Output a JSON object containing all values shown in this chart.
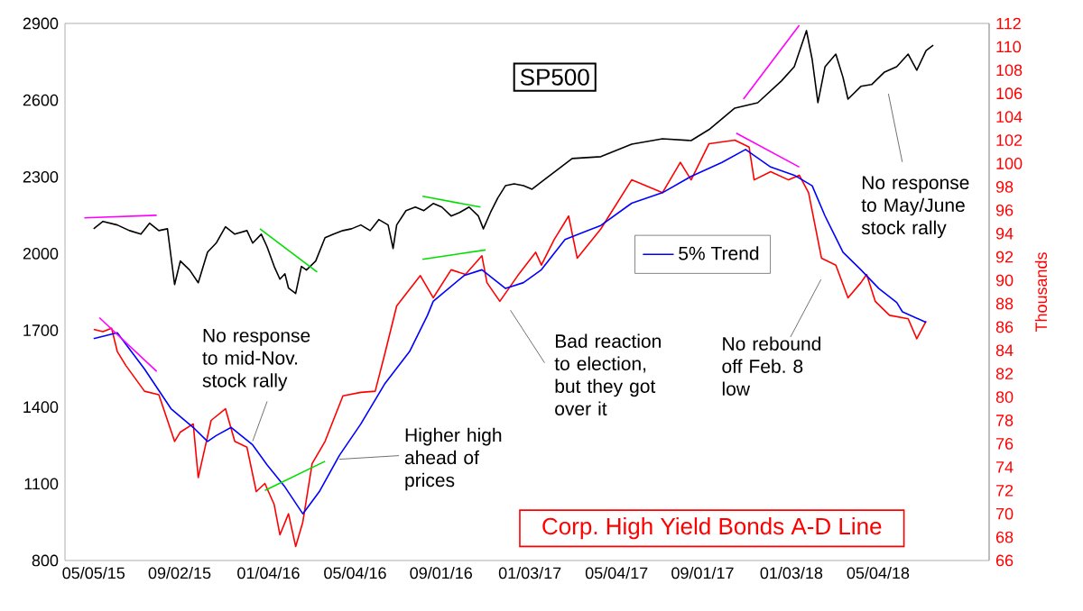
{
  "chart_data": {
    "type": "line",
    "xlim": [
      "2015-03-26",
      "2018-10-06"
    ],
    "xticks": [
      {
        "value": "2015-05-05",
        "label": "05/05/15"
      },
      {
        "value": "2015-09-02",
        "label": "09/02/15"
      },
      {
        "value": "2016-01-04",
        "label": "01/04/16"
      },
      {
        "value": "2016-05-04",
        "label": "05/04/16"
      },
      {
        "value": "2016-09-01",
        "label": "09/01/16"
      },
      {
        "value": "2017-01-03",
        "label": "01/03/17"
      },
      {
        "value": "2017-05-04",
        "label": "05/04/17"
      },
      {
        "value": "2017-09-01",
        "label": "09/01/17"
      },
      {
        "value": "2018-01-03",
        "label": "01/03/18"
      },
      {
        "value": "2018-05-04",
        "label": "05/04/18"
      }
    ],
    "ylim": [
      800,
      2900
    ],
    "yticks": [
      800,
      1100,
      1400,
      1700,
      2000,
      2300,
      2600,
      2900
    ],
    "y2lim": [
      66,
      112
    ],
    "y2ticks": [
      66,
      68,
      70,
      72,
      74,
      76,
      78,
      80,
      82,
      84,
      86,
      88,
      90,
      92,
      94,
      96,
      98,
      100,
      102,
      104,
      106,
      108,
      110,
      112
    ],
    "y2label": "Thousands",
    "legend": "center right",
    "marker": "none",
    "series": [
      {
        "name": "SP500",
        "color": "#000000",
        "x": [
          "2015-05-05",
          "2015-05-18",
          "2015-06-07",
          "2015-06-24",
          "2015-07-10",
          "2015-07-22",
          "2015-08-04",
          "2015-08-16",
          "2015-08-26",
          "2015-09-03",
          "2015-09-16",
          "2015-09-28",
          "2015-10-11",
          "2015-10-23",
          "2015-11-05",
          "2015-11-18",
          "2015-12-05",
          "2015-12-13",
          "2015-12-25",
          "2016-01-02",
          "2016-01-12",
          "2016-01-20",
          "2016-01-27",
          "2016-02-01",
          "2016-02-11",
          "2016-02-19",
          "2016-02-26",
          "2016-03-10",
          "2016-03-23",
          "2016-04-04",
          "2016-04-17",
          "2016-04-29",
          "2016-05-12",
          "2016-05-25",
          "2016-06-06",
          "2016-06-19",
          "2016-06-26",
          "2016-07-01",
          "2016-07-14",
          "2016-07-27",
          "2016-08-08",
          "2016-08-21",
          "2016-09-02",
          "2016-09-15",
          "2016-09-27",
          "2016-10-10",
          "2016-10-23",
          "2016-10-30",
          "2016-11-09",
          "2016-11-19",
          "2016-11-30",
          "2016-12-12",
          "2016-12-25",
          "2017-01-06",
          "2017-01-19",
          "2017-03-03",
          "2017-04-12",
          "2017-05-25",
          "2017-07-07",
          "2017-08-16",
          "2017-09-10",
          "2017-10-16",
          "2017-11-17",
          "2017-12-20",
          "2018-01-07",
          "2018-01-24",
          "2018-02-01",
          "2018-02-09",
          "2018-02-19",
          "2018-03-06",
          "2018-03-16",
          "2018-03-23",
          "2018-04-10",
          "2018-04-25",
          "2018-05-13",
          "2018-05-30",
          "2018-06-15",
          "2018-06-27",
          "2018-07-10",
          "2018-07-20"
        ],
        "values": [
          2097,
          2126,
          2112,
          2090,
          2076,
          2119,
          2090,
          2097,
          1879,
          1971,
          1936,
          1886,
          2006,
          2041,
          2105,
          2076,
          2090,
          2041,
          2076,
          2027,
          1950,
          1900,
          1921,
          1865,
          1844,
          1950,
          1936,
          1971,
          2062,
          2076,
          2090,
          2097,
          2112,
          2090,
          2133,
          2112,
          2020,
          2112,
          2168,
          2182,
          2168,
          2196,
          2182,
          2147,
          2161,
          2182,
          2147,
          2097,
          2161,
          2217,
          2266,
          2273,
          2266,
          2252,
          2280,
          2372,
          2379,
          2428,
          2449,
          2442,
          2485,
          2569,
          2590,
          2675,
          2731,
          2872,
          2759,
          2590,
          2731,
          2780,
          2689,
          2604,
          2654,
          2661,
          2710,
          2731,
          2780,
          2717,
          2794,
          2815
        ]
      },
      {
        "name": "Corp. High Yield Bonds A-D Line",
        "color": "#ff0000",
        "axis": "y2",
        "x": [
          "2015-05-05",
          "2015-05-18",
          "2015-05-30",
          "2015-06-07",
          "2015-06-19",
          "2015-07-02",
          "2015-07-15",
          "2015-08-04",
          "2015-08-26",
          "2015-09-03",
          "2015-09-21",
          "2015-09-28",
          "2015-10-16",
          "2015-11-05",
          "2015-11-18",
          "2015-12-05",
          "2015-12-18",
          "2015-12-30",
          "2016-01-12",
          "2016-01-20",
          "2016-02-01",
          "2016-02-11",
          "2016-02-21",
          "2016-03-05",
          "2016-03-23",
          "2016-04-17",
          "2016-05-12",
          "2016-06-01",
          "2016-06-14",
          "2016-07-01",
          "2016-08-03",
          "2016-08-21",
          "2016-09-15",
          "2016-10-05",
          "2016-10-28",
          "2016-11-04",
          "2016-11-22",
          "2016-12-17",
          "2017-01-11",
          "2017-01-19",
          "2017-02-06",
          "2017-02-26",
          "2017-03-10",
          "2017-04-12",
          "2017-05-25",
          "2017-07-07",
          "2017-08-01",
          "2017-08-16",
          "2017-09-10",
          "2017-10-16",
          "2017-11-05",
          "2017-11-12",
          "2017-12-05",
          "2017-12-30",
          "2018-01-14",
          "2018-01-27",
          "2018-02-14",
          "2018-03-06",
          "2018-03-23",
          "2018-04-10",
          "2018-04-18",
          "2018-04-30",
          "2018-05-20",
          "2018-06-15",
          "2018-06-27",
          "2018-07-10"
        ],
        "values": [
          85.8,
          85.6,
          85.9,
          83.9,
          82.7,
          81.6,
          80.5,
          80.2,
          76.2,
          77.0,
          77.7,
          73.1,
          78.0,
          79.0,
          76.2,
          75.7,
          71.9,
          72.6,
          70.8,
          68.2,
          70.0,
          67.2,
          69.3,
          74.3,
          76.2,
          80.1,
          80.4,
          80.5,
          83.6,
          87.8,
          90.4,
          88.5,
          90.9,
          90.5,
          92.1,
          89.8,
          88.2,
          90.4,
          92.4,
          91.3,
          93.5,
          95.5,
          91.9,
          94.4,
          98.6,
          97.5,
          100.1,
          98.6,
          101.7,
          102.0,
          101.4,
          98.6,
          99.3,
          98.6,
          99.0,
          97.5,
          91.9,
          91.3,
          88.5,
          89.8,
          90.5,
          88.2,
          87.0,
          86.7,
          85.0,
          86.5
        ]
      },
      {
        "name": "5% Trend",
        "color": "#0000ff",
        "axis": "y2",
        "x": [
          "2015-05-05",
          "2015-06-07",
          "2015-07-15",
          "2015-08-21",
          "2015-09-21",
          "2015-10-11",
          "2015-10-23",
          "2015-11-13",
          "2015-12-13",
          "2016-01-02",
          "2016-01-27",
          "2016-02-21",
          "2016-03-15",
          "2016-04-12",
          "2016-05-12",
          "2016-06-14",
          "2016-07-19",
          "2016-08-13",
          "2016-08-21",
          "2016-10-03",
          "2016-10-28",
          "2016-11-30",
          "2016-12-25",
          "2017-01-19",
          "2017-02-21",
          "2017-04-12",
          "2017-05-25",
          "2017-07-07",
          "2017-08-16",
          "2017-09-28",
          "2017-10-31",
          "2017-12-05",
          "2018-01-07",
          "2018-02-01",
          "2018-02-19",
          "2018-03-16",
          "2018-04-10",
          "2018-05-05",
          "2018-05-30",
          "2018-06-07",
          "2018-07-10"
        ],
        "values": [
          85.0,
          85.5,
          82.4,
          79.0,
          77.4,
          76.2,
          76.7,
          77.4,
          75.9,
          74.2,
          72.3,
          70.0,
          71.9,
          75.0,
          77.7,
          81.1,
          83.9,
          87.0,
          88.2,
          90.4,
          90.9,
          89.3,
          89.8,
          90.9,
          93.5,
          94.7,
          96.6,
          97.5,
          98.9,
          100.1,
          101.2,
          99.7,
          99.0,
          98.1,
          95.5,
          92.4,
          90.9,
          89.3,
          88.1,
          87.3,
          86.4
        ]
      },
      {
        "color": "#ff00ff",
        "x": [
          "2015-04-22",
          "2015-08-01"
        ],
        "values": [
          2140,
          2150
        ]
      },
      {
        "color": "#ff00ff",
        "axis": "y2",
        "x": [
          "2015-05-13",
          "2015-08-01"
        ],
        "values": [
          86.8,
          82.2
        ]
      },
      {
        "color": "#00dd00",
        "x": [
          "2015-12-23",
          "2016-03-12"
        ],
        "values": [
          2097,
          1928
        ]
      },
      {
        "color": "#00dd00",
        "axis": "y2",
        "x": [
          "2015-12-30",
          "2016-03-23"
        ],
        "values": [
          72.0,
          74.5
        ]
      },
      {
        "color": "#00dd00",
        "x": [
          "2016-08-06",
          "2016-10-26"
        ],
        "values": [
          2224,
          2182
        ]
      },
      {
        "color": "#00dd00",
        "axis": "y2",
        "x": [
          "2016-08-06",
          "2016-11-02"
        ],
        "values": [
          91.8,
          92.6
        ]
      },
      {
        "color": "#ff00ff",
        "x": [
          "2017-10-28",
          "2018-01-14"
        ],
        "values": [
          2604,
          2893
        ]
      },
      {
        "color": "#ff00ff",
        "axis": "y2",
        "x": [
          "2017-10-18",
          "2018-01-14"
        ],
        "values": [
          102.6,
          99.7
        ]
      }
    ],
    "annotations": [
      {
        "text": "No response to mid-Nov. stock rally",
        "x": "2015-12-13",
        "y": 1267
      },
      {
        "text": "Higher high ahead of prices",
        "x": "2016-04-12",
        "y": 1196
      },
      "Bad reaction to election, but they got over it",
      "No rebound off Feb. 8 low",
      "No response to May/June stock rally"
    ]
  }
}
